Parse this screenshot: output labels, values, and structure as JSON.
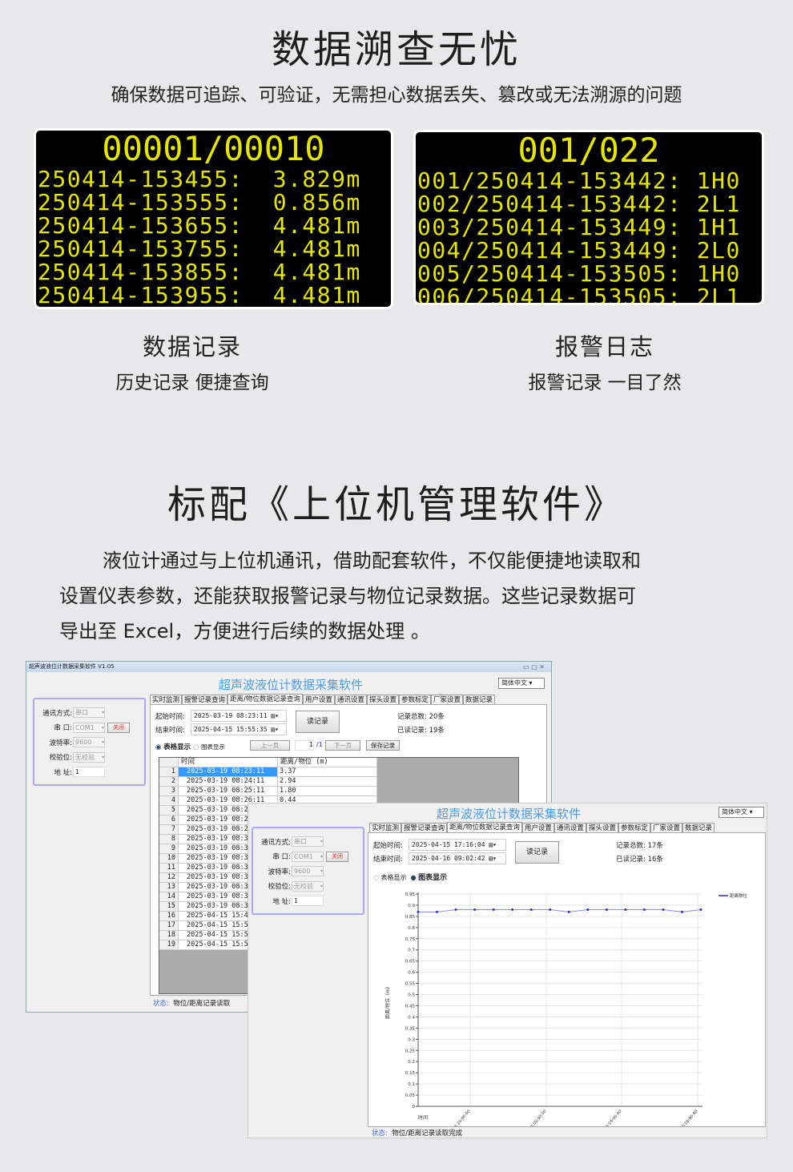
{
  "section1": {
    "title": "数据溯查无忧",
    "subtitle": "确保数据可追踪、可验证，无需担心数据丢失、篡改或无法溯源的问题"
  },
  "display_records": {
    "header": "00001/00010",
    "lines": [
      "250414-153455:  3.829m",
      "250414-153555:  0.856m",
      "250414-153655:  4.481m",
      "250414-153755:  4.481m",
      "250414-153855:  4.481m",
      "250414-153955:  4.481m"
    ]
  },
  "display_alarms": {
    "header": "001/022",
    "lines": [
      "001/250414-153442: 1H0",
      "002/250414-153442: 2L1",
      "003/250414-153449: 1H1",
      "004/250414-153449: 2L0",
      "005/250414-153505: 1H0",
      "006/250414-153505: 2L1"
    ]
  },
  "feature_records": {
    "title": "数据记录",
    "desc": "历史记录  便捷查询"
  },
  "feature_alarms": {
    "title": "报警日志",
    "desc": "报警记录  一目了然"
  },
  "section2": {
    "title": "标配《上位机管理软件》",
    "paragraph_lines": [
      "液位计通过与上位机通讯，借助配套软件，不仅能便捷地读取和",
      "设置仪表参数，还能获取报警记录与物位记录数据。这些记录数据可",
      "导出至 Excel，方便进行后续的数据处理 。"
    ]
  },
  "software": {
    "window_title": "超声波液位计数据采集软件 V1.05",
    "app_title": "超声波液位计数据采集软件",
    "language": "简体中文",
    "tabs": [
      "实时监测",
      "报警记录查询",
      "距离/物位数据记录查询",
      "用户设置",
      "通讯设置",
      "探头设置",
      "参数标定",
      "厂家设置",
      "数据记录"
    ],
    "active_tab": 2,
    "comm": {
      "mode_label": "通讯方式:",
      "mode": "串口",
      "port_label": "串    口:",
      "port": "COM1",
      "close_button": "关闭",
      "baud_label": "波特率:",
      "baud": "9600",
      "parity_label": "校验位:",
      "parity": "无校验",
      "addr_label": "地    址:",
      "addr": "1"
    },
    "start_label": "起始时间:",
    "end_label": "结束时间:",
    "read_button": "读记录",
    "total_label": "记录总数:",
    "read_label": "已读记录:",
    "table_view": "表格显示",
    "chart_view": "图表显示",
    "prev_page": "上一页",
    "next_page": "下一页",
    "page": "1",
    "page_total": "/1",
    "save_button": "保存记录",
    "status_label": "状态:"
  },
  "window1": {
    "start": "2025-03-19 08:23:11",
    "end": "2025-04-15 15:55:35",
    "total": "20条",
    "read": "19条",
    "columns": [
      "时间",
      "距离/物位 (m)"
    ],
    "rows": [
      [
        "1",
        "2025-03-19 08:23:11",
        "3.37"
      ],
      [
        "2",
        "2025-03-19 08:24:11",
        "2.94"
      ],
      [
        "3",
        "2025-03-19 08:25:11",
        "1.80"
      ],
      [
        "4",
        "2025-03-19 08:26:11",
        "0.44"
      ],
      [
        "5",
        "2025-03-19 08:2",
        ""
      ],
      [
        "6",
        "2025-03-19 08:2",
        ""
      ],
      [
        "7",
        "2025-03-19 08:2",
        ""
      ],
      [
        "8",
        "2025-03-19 08:3",
        ""
      ],
      [
        "9",
        "2025-03-19 08:3",
        ""
      ],
      [
        "10",
        "2025-03-19 08:3",
        ""
      ],
      [
        "11",
        "2025-03-19 08:3",
        ""
      ],
      [
        "12",
        "2025-03-19 08:3",
        ""
      ],
      [
        "13",
        "2025-03-19 08:3",
        ""
      ],
      [
        "14",
        "2025-03-19 08:3",
        ""
      ],
      [
        "15",
        "2025-03-19 08:3",
        ""
      ],
      [
        "16",
        "2025-04-15 15:4",
        ""
      ],
      [
        "17",
        "2025-04-15 15:5",
        ""
      ],
      [
        "18",
        "2025-04-15 15:5",
        ""
      ],
      [
        "19",
        "2025-04-15 15:5",
        ""
      ]
    ],
    "status": "物位/距离记录读取"
  },
  "window2": {
    "start": "2025-04-15 17:16:04",
    "end": "2025-04-16 09:02:42",
    "total": "17条",
    "read": "16条",
    "status": "物位/距离记录读取完成"
  },
  "chart_data": {
    "type": "line",
    "ylabel": "距离/物位（m）",
    "xlabel": "时间",
    "ylim": [
      0,
      0.95
    ],
    "yticks": [
      "0",
      "0.05",
      "0.1",
      "0.15",
      "0.2",
      "0.25",
      "0.3",
      "0.35",
      "0.4",
      "0.45",
      "0.5",
      "0.55",
      "0.6",
      "0.65",
      "0.7",
      "0.75",
      "0.8",
      "0.85",
      "0.9",
      "0.95"
    ],
    "xticks": [
      "2025-04-15 20:00:00",
      "2025-04-16 00:00:00",
      "2025-04-16 04:00:00",
      "2025-04-16 08:00:00"
    ],
    "grid": true,
    "legend_position": "top-right",
    "line_color": "#2a2aff",
    "series": [
      {
        "name": "距离物位",
        "values": [
          0.87,
          0.87,
          0.88,
          0.88,
          0.88,
          0.88,
          0.88,
          0.88,
          0.87,
          0.88,
          0.88,
          0.88,
          0.88,
          0.88,
          0.87,
          0.88
        ]
      }
    ]
  }
}
